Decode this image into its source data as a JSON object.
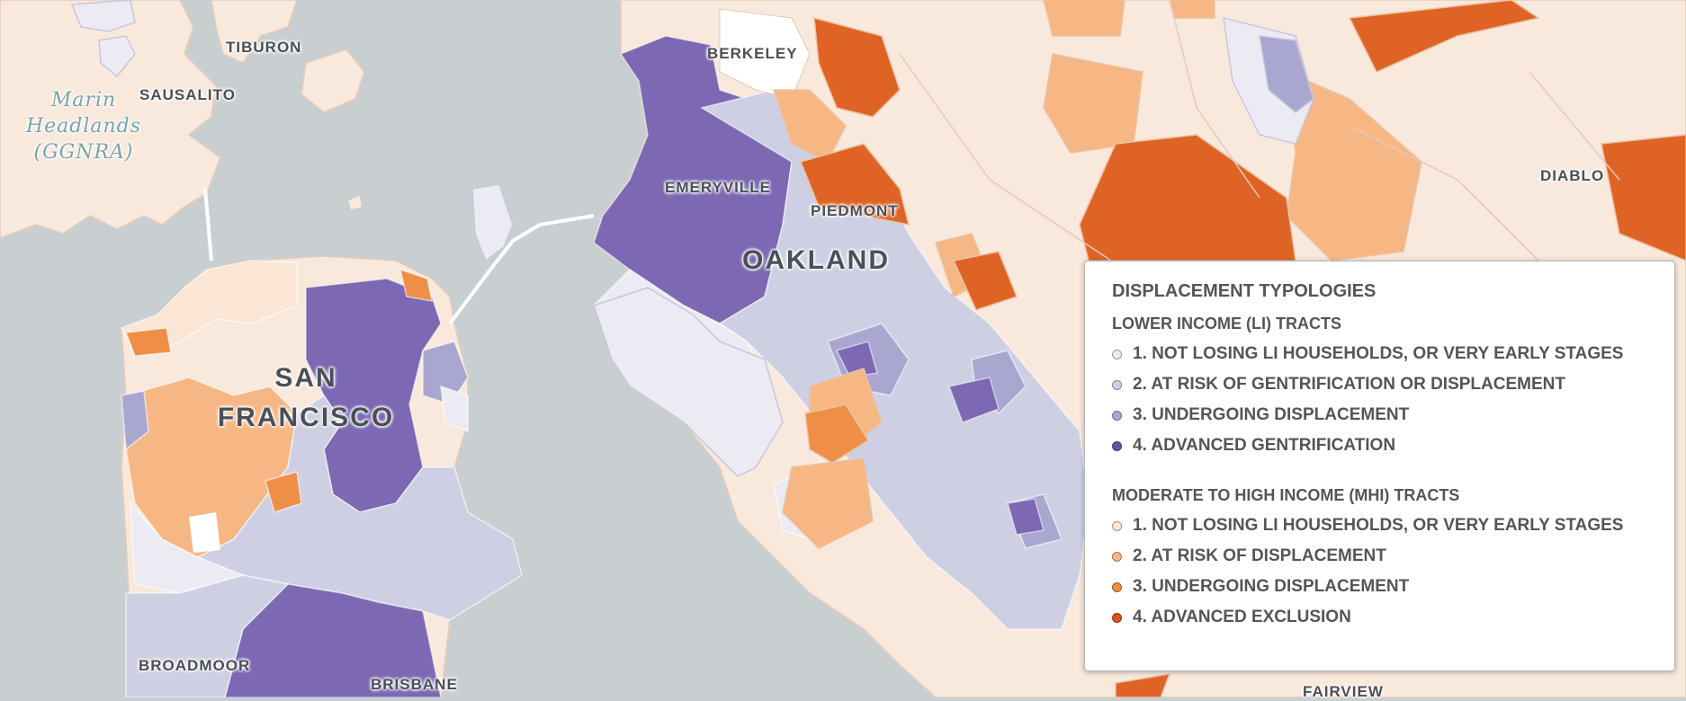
{
  "map": {
    "colors": {
      "water": "#c9cfd1",
      "land": "#f9e8dc",
      "li": [
        "#ecebf3",
        "#cfcfe4",
        "#a9a6d0",
        "#7c68b3"
      ],
      "mhi": [
        "#fbe6d5",
        "#f6b784",
        "#ee8e47",
        "#df6325"
      ]
    },
    "places": {
      "tiburon": "TIBURON",
      "sausalito": "SAUSALITO",
      "marin_1": "Marin",
      "marin_2": "Headlands",
      "marin_3": "(GGNRA)",
      "berkeley": "BERKELEY",
      "emeryville": "EMERYVILLE",
      "piedmont": "PIEDMONT",
      "oakland": "OAKLAND",
      "sf_1": "SAN",
      "sf_2": "FRANCISCO",
      "diablo": "DIABLO",
      "broadmoor": "BROADMOOR",
      "brisbane": "BRISBANE",
      "fairview": "FAIRVIEW"
    }
  },
  "legend": {
    "title": "DISPLACEMENT TYPOLOGIES",
    "li_header": "LOWER INCOME (LI) TRACTS",
    "li_items": [
      {
        "label": "1. NOT LOSING LI HOUSEHOLDS, OR VERY EARLY STAGES",
        "color": "#ecebf3"
      },
      {
        "label": "2. AT RISK OF GENTRIFICATION OR DISPLACEMENT",
        "color": "#cfcfe4"
      },
      {
        "label": "3. UNDERGOING DISPLACEMENT",
        "color": "#a9a6d0"
      },
      {
        "label": "4. ADVANCED GENTRIFICATION",
        "color": "#6a4fa8"
      }
    ],
    "mhi_header": "MODERATE TO HIGH INCOME (MHI) TRACTS",
    "mhi_items": [
      {
        "label": "1. NOT LOSING LI HOUSEHOLDS, OR VERY EARLY STAGES",
        "color": "#fbe6d5"
      },
      {
        "label": "2. AT RISK OF DISPLACEMENT",
        "color": "#f6b784"
      },
      {
        "label": "3. UNDERGOING DISPLACEMENT",
        "color": "#ee8e47"
      },
      {
        "label": "4. ADVANCED EXCLUSION",
        "color": "#d9531c"
      }
    ]
  }
}
